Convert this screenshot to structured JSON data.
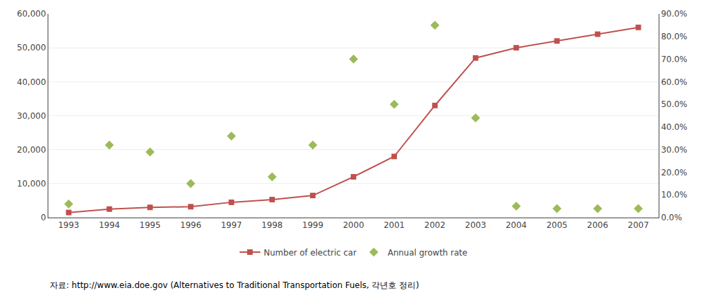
{
  "chart_data": {
    "type": "line",
    "x": [
      1993,
      1994,
      1995,
      1996,
      1997,
      1998,
      1999,
      2000,
      2001,
      2002,
      2003,
      2004,
      2005,
      2006,
      2007
    ],
    "series": [
      {
        "name": "Number of electric car",
        "type": "line",
        "color": "#C0504D",
        "marker": "square",
        "line_style": "solid",
        "values": [
          1500,
          2500,
          3000,
          3200,
          4500,
          5300,
          6500,
          12000,
          18000,
          33000,
          47000,
          50000,
          52000,
          54000,
          56000
        ]
      },
      {
        "name": "Annual growth rate",
        "type": "scatter",
        "axis": "y2",
        "color": "#9BBB59",
        "marker": "diamond",
        "values": [
          0.06,
          0.32,
          0.29,
          0.15,
          0.36,
          0.18,
          0.32,
          0.7,
          0.5,
          0.85,
          0.44,
          0.05,
          0.04,
          0.04,
          0.04
        ]
      }
    ],
    "xlim": [
      1992.5,
      2007.5
    ],
    "xticks": [
      1993,
      1994,
      1995,
      1996,
      1997,
      1998,
      1999,
      2000,
      2001,
      2002,
      2003,
      2004,
      2005,
      2006,
      2007
    ],
    "ylim": [
      0,
      60000
    ],
    "yticks": [
      0,
      {
        "value": 10000,
        "label": "10,000"
      },
      {
        "value": 20000,
        "label": "20,000"
      },
      {
        "value": 30000,
        "label": "30,000"
      },
      {
        "value": 40000,
        "label": "40,000"
      },
      {
        "value": 50000,
        "label": "50,000"
      },
      {
        "value": 60000,
        "label": "60,000"
      }
    ],
    "y2lim": [
      0.0,
      0.9
    ],
    "y2ticks": [
      {
        "value": 0.0,
        "label": "0.0%"
      },
      {
        "value": 0.1,
        "label": "10.0%"
      },
      {
        "value": 0.2,
        "label": "20.0%"
      },
      {
        "value": 0.3,
        "label": "30.0%"
      },
      {
        "value": 0.4,
        "label": "40.0%"
      },
      {
        "value": 0.5,
        "label": "50.0%"
      },
      {
        "value": 0.6,
        "label": "60.0%"
      },
      {
        "value": 0.7,
        "label": "70.0%"
      },
      {
        "value": 0.8,
        "label": "80.0%"
      },
      {
        "value": 0.9,
        "label": "90.0%"
      }
    ],
    "annotations": [
      "자료: http://www.eia.doe.gov (Alternatives to Traditional Transportation Fuels, 각년호 정리)"
    ],
    "grid": true,
    "legend": "bottom"
  }
}
